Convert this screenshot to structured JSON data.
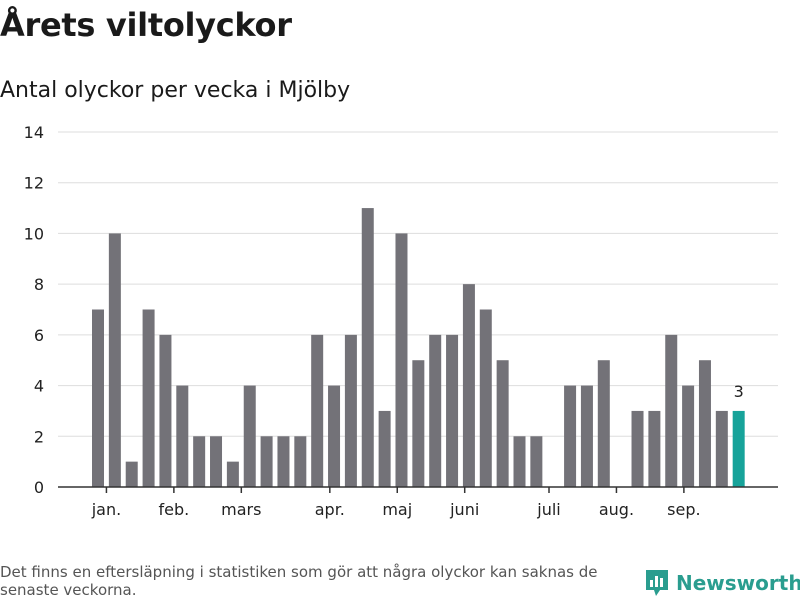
{
  "chart_data": {
    "type": "bar",
    "title": "Årets viltolyckor",
    "subtitle": "Antal olyckor per vecka i Mjölby",
    "ylim": [
      0,
      14
    ],
    "yticks": [
      0,
      2,
      4,
      6,
      8,
      10,
      12,
      14
    ],
    "grid": true,
    "weeks": [
      1,
      2,
      3,
      4,
      5,
      6,
      7,
      8,
      9,
      10,
      11,
      12,
      13,
      14,
      15,
      16,
      17,
      18,
      19,
      20,
      21,
      22,
      23,
      24,
      25,
      26,
      27,
      28,
      29,
      30,
      31,
      32,
      33,
      34,
      35,
      36,
      37,
      38,
      39
    ],
    "values": [
      7,
      10,
      1,
      7,
      6,
      4,
      2,
      2,
      1,
      4,
      2,
      2,
      2,
      6,
      4,
      6,
      11,
      3,
      10,
      5,
      6,
      6,
      8,
      7,
      5,
      2,
      2,
      0,
      4,
      4,
      5,
      0,
      3,
      3,
      6,
      4,
      5,
      3,
      3
    ],
    "month_labels": [
      {
        "label": "jan.",
        "week": 1.5
      },
      {
        "label": "feb.",
        "week": 5.5
      },
      {
        "label": "mars",
        "week": 9.5
      },
      {
        "label": "apr.",
        "week": 14.75
      },
      {
        "label": "maj",
        "week": 18.75
      },
      {
        "label": "juni",
        "week": 22.75
      },
      {
        "label": "juli",
        "week": 27.75
      },
      {
        "label": "aug.",
        "week": 31.75
      },
      {
        "label": "sep.",
        "week": 35.75
      }
    ],
    "annotation": {
      "week": 39,
      "label": "3"
    },
    "colors": {
      "bar": "#737278",
      "highlight": "#17a39a",
      "grid": "#dddddd",
      "axis": "#333333"
    }
  },
  "footnote": "Det finns en eftersläpning i statistiken som gör att några olyckor kan saknas de senaste veckorna.",
  "brand": {
    "name": "Newsworthy",
    "icon": "newsworthy-logo-icon"
  }
}
